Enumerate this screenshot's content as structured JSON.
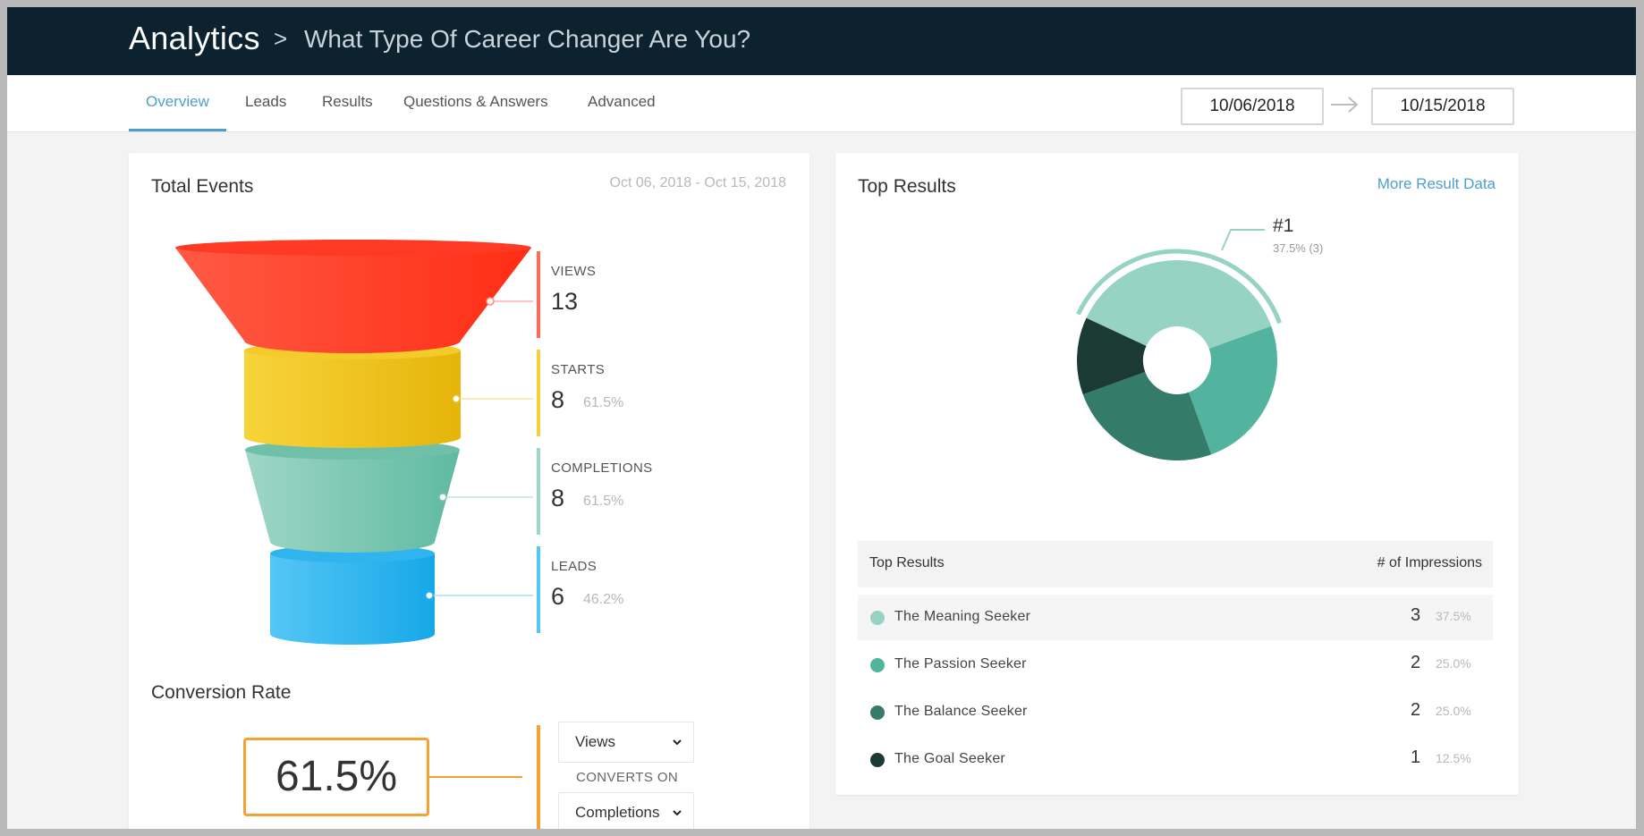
{
  "header": {
    "app_title": "Analytics",
    "separator": ">",
    "page_title": "What Type Of Career Changer Are You?"
  },
  "tabs": [
    {
      "label": "Overview",
      "active": true
    },
    {
      "label": "Leads",
      "active": false
    },
    {
      "label": "Results",
      "active": false
    },
    {
      "label": "Questions & Answers",
      "active": false
    },
    {
      "label": "Advanced",
      "active": false
    }
  ],
  "date_range": {
    "start": "10/06/2018",
    "end": "10/15/2018",
    "arrow_icon": "arrow-right-icon"
  },
  "total_events": {
    "title": "Total Events",
    "range_text": "Oct 06, 2018 - Oct 15, 2018",
    "stages": [
      {
        "label": "VIEWS",
        "value": "13",
        "pct": "",
        "color": "#ff3a24"
      },
      {
        "label": "STARTS",
        "value": "8",
        "pct": "61.5%",
        "color": "#f0c419"
      },
      {
        "label": "COMPLETIONS",
        "value": "8",
        "pct": "61.5%",
        "color": "#7fc6b1"
      },
      {
        "label": "LEADS",
        "value": "6",
        "pct": "46.2%",
        "color": "#38b8ef"
      }
    ]
  },
  "conversion": {
    "title": "Conversion Rate",
    "value": "61.5%",
    "from_select": "Views",
    "converts_on_label": "CONVERTS ON",
    "to_select": "Completions",
    "accent": "#f3a233"
  },
  "top_results": {
    "title": "Top Results",
    "more_link": "More Result Data",
    "rank_label": "#1",
    "rank_detail": "37.5% (3)",
    "table_headers": {
      "name": "Top Results",
      "count": "# of Impressions"
    },
    "rows": [
      {
        "name": "The Meaning Seeker",
        "count": "3",
        "pct": "37.5%",
        "share": 0.375,
        "color": "#96d3c3"
      },
      {
        "name": "The Passion Seeker",
        "count": "2",
        "pct": "25.0%",
        "share": 0.25,
        "color": "#52b49e"
      },
      {
        "name": "The Balance Seeker",
        "count": "2",
        "pct": "25.0%",
        "share": 0.25,
        "color": "#347b6a"
      },
      {
        "name": "The Goal Seeker",
        "count": "1",
        "pct": "12.5%",
        "share": 0.125,
        "color": "#1b3a34"
      }
    ]
  }
}
